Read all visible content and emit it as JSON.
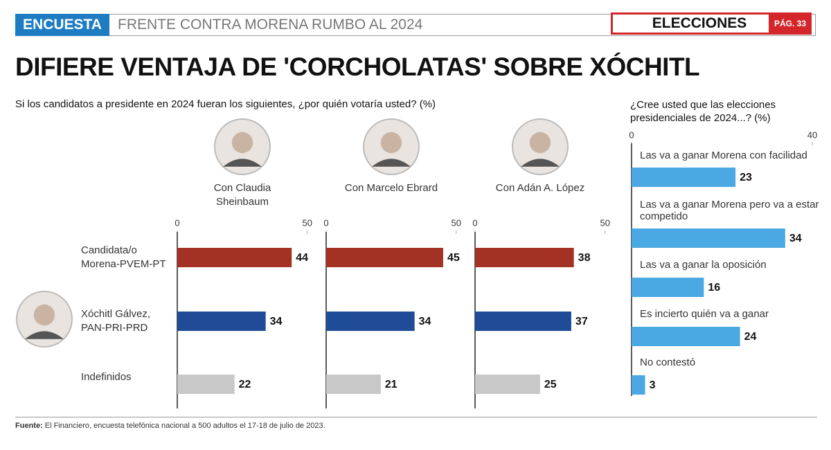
{
  "header": {
    "section": "ENCUESTA",
    "topic": "FRENTE CONTRA MORENA RUMBO AL 2024",
    "label": "ELECCIONES",
    "page": "PÁG. 33"
  },
  "title": "DIFIERE VENTAJA DE 'CORCHOLATAS' SOBRE XÓCHITL",
  "source_label": "Fuente:",
  "source": "El Financiero, encuesta telefónica nacional a 500 adultos el 17-18 de julio de 2023.",
  "chart_data": [
    {
      "type": "bar",
      "title": "Si los candidatos a presidente en 2024 fueran los siguientes, ¿por quién votaría usted? (%)",
      "categories": [
        "Candidata/o Morena-PVEM-PT",
        "Xóchitl Gálvez, PAN-PRI-PRD",
        "Indefinidos"
      ],
      "colors": [
        "#a33224",
        "#1f4b97",
        "#c8c8c8"
      ],
      "series": [
        {
          "name": "Con Claudia Sheinbaum",
          "values": [
            44,
            34,
            22
          ]
        },
        {
          "name": "Con Marcelo Ebrard",
          "values": [
            45,
            34,
            21
          ]
        },
        {
          "name": "Con Adán A. López",
          "values": [
            38,
            37,
            25
          ]
        }
      ],
      "xlim": [
        0,
        53
      ],
      "xticks": [
        0,
        50
      ]
    },
    {
      "type": "bar",
      "title": "¿Cree usted que las elecciones presidenciales de 2024...? (%)",
      "categories": [
        "Las va a ganar Morena con facilidad",
        "Las va a ganar Morena pero va a estar competido",
        "Las va a ganar la oposición",
        "Es incierto quién va a ganar",
        "No contestó"
      ],
      "values": [
        23,
        34,
        16,
        24,
        3
      ],
      "color": "#4aa9e2",
      "xlim": [
        0,
        40
      ],
      "xticks": [
        0,
        40
      ]
    }
  ]
}
